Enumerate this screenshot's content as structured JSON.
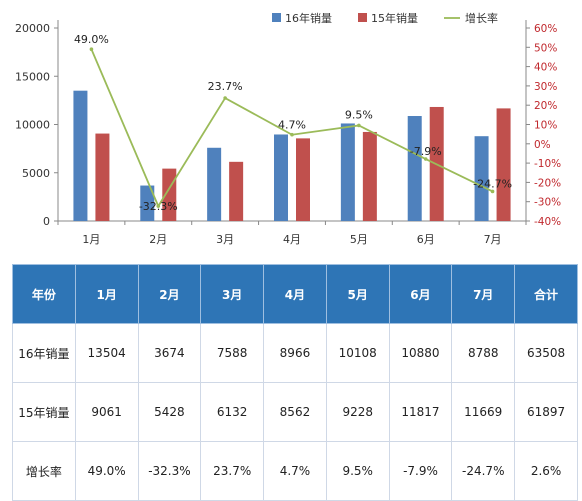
{
  "chart_data": {
    "type": "bar",
    "categories": [
      "1月",
      "2月",
      "3月",
      "4月",
      "5月",
      "6月",
      "7月"
    ],
    "series": [
      {
        "name": "16年销量",
        "type": "bar",
        "axis": "left",
        "color": "#4f81bd",
        "values": [
          13504,
          3674,
          7588,
          8966,
          10108,
          10880,
          8788
        ]
      },
      {
        "name": "15年销量",
        "type": "bar",
        "axis": "left",
        "color": "#c0504d",
        "values": [
          9061,
          5428,
          6132,
          8562,
          9228,
          11817,
          11669
        ]
      },
      {
        "name": "增长率",
        "type": "line",
        "axis": "right",
        "color": "#9bbb59",
        "values": [
          49.0,
          -32.3,
          23.7,
          4.7,
          9.5,
          -7.9,
          -24.7
        ],
        "labels": [
          "49.0%",
          "-32.3%",
          "23.7%",
          "4.7%",
          "9.5%",
          "-7.9%",
          "-24.7%"
        ]
      }
    ],
    "ylim": [
      0,
      20000
    ],
    "yticks": [
      "0",
      "5000",
      "10000",
      "15000",
      "20000"
    ],
    "y2lim": [
      -40,
      60
    ],
    "y2ticks": [
      "-40%",
      "-30%",
      "-20%",
      "-10%",
      "0%",
      "10%",
      "20%",
      "30%",
      "40%",
      "50%",
      "60%"
    ],
    "legend_position": "top-right",
    "grid": false
  },
  "table": {
    "headers": [
      "年份",
      "1月",
      "2月",
      "3月",
      "4月",
      "5月",
      "6月",
      "7月",
      "合计"
    ],
    "rows": [
      [
        "16年销量",
        "13504",
        "3674",
        "7588",
        "8966",
        "10108",
        "10880",
        "8788",
        "63508"
      ],
      [
        "15年销量",
        "9061",
        "5428",
        "6132",
        "8562",
        "9228",
        "11817",
        "11669",
        "61897"
      ],
      [
        "增长率",
        "49.0%",
        "-32.3%",
        "23.7%",
        "4.7%",
        "9.5%",
        "-7.9%",
        "-24.7%",
        "2.6%"
      ]
    ]
  }
}
